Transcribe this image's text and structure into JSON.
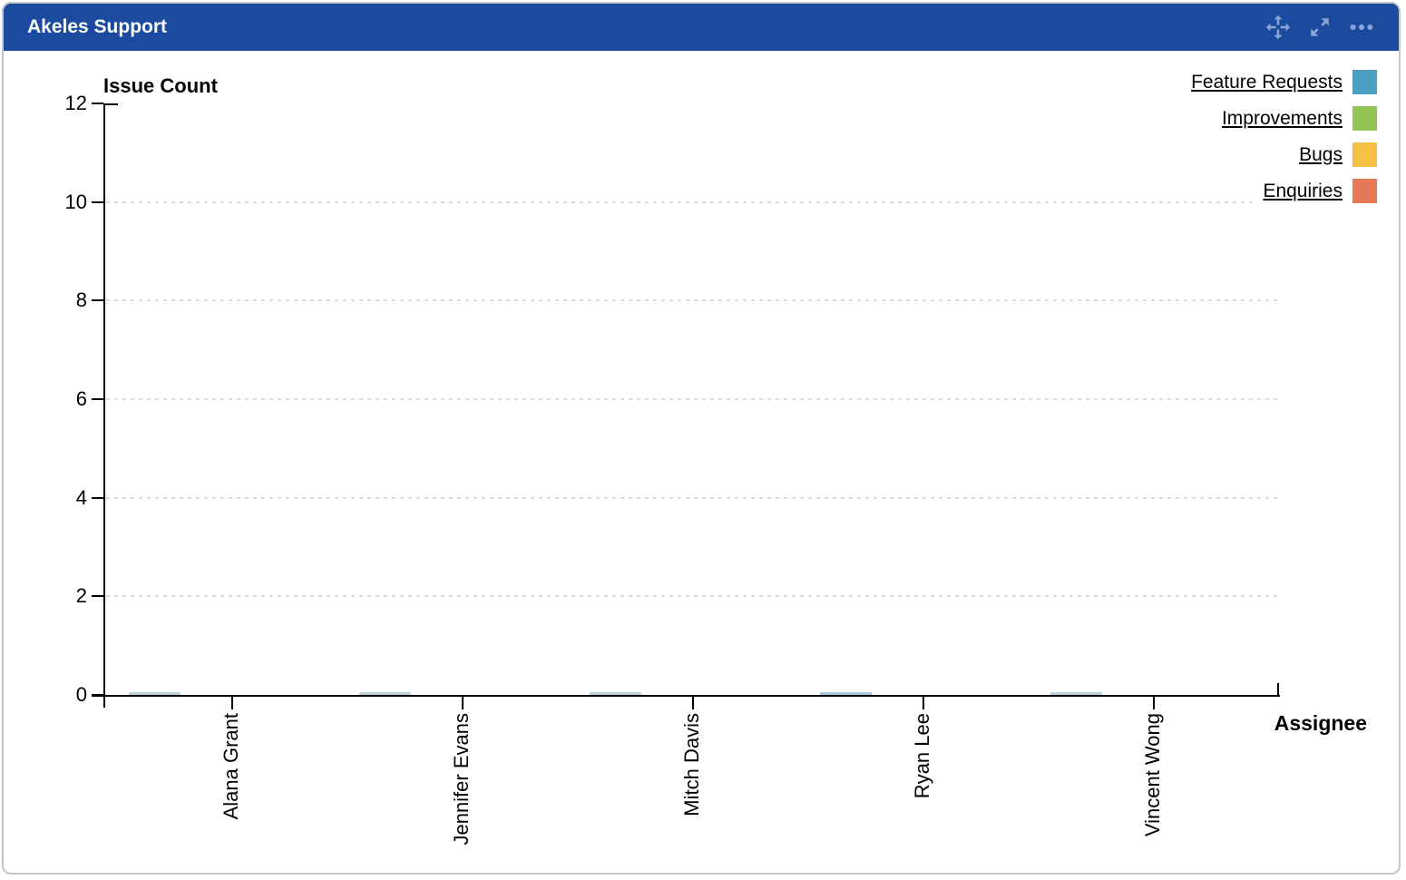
{
  "header": {
    "title": "Akeles Support",
    "icons": [
      {
        "name": "move-icon"
      },
      {
        "name": "expand-icon"
      },
      {
        "name": "more-options-icon"
      }
    ]
  },
  "chart_data": {
    "type": "bar",
    "title": "Akeles Support",
    "ylabel": "Issue Count",
    "xlabel": "Assignee",
    "categories": [
      "Alana Grant",
      "Jennifer Evans",
      "Mitch Davis",
      "Ryan Lee",
      "Vincent Wong"
    ],
    "series": [
      {
        "name": "Feature Requests",
        "color": "#4b9fc2",
        "values": [
          0,
          0,
          0,
          0,
          0
        ]
      },
      {
        "name": "Improvements",
        "color": "#92c353",
        "values": [
          0,
          0,
          0,
          0,
          0
        ]
      },
      {
        "name": "Bugs",
        "color": "#f4c145",
        "values": [
          0,
          0,
          0,
          0,
          0
        ]
      },
      {
        "name": "Enquiries",
        "color": "#e57a58",
        "values": [
          0,
          0,
          0,
          0,
          0
        ]
      }
    ],
    "ylim": [
      0,
      12
    ],
    "yticks": [
      0,
      2,
      4,
      6,
      8,
      10,
      12
    ],
    "gridlines_at": [
      2,
      4,
      6,
      8,
      10
    ],
    "grid_style": "dashed",
    "legend_position": "top-right",
    "legend_underlined": true,
    "note": "All series values are zero; bars render only as thin slivers on the baseline."
  },
  "colors": {
    "header_bg": "#1b4b9e",
    "header_text": "#ffffff",
    "header_icon": "#8ba5d6",
    "card_border": "#c6c6c6",
    "axis": "#000000",
    "gridline": "#d9d9d9",
    "zero_bar_sliver": "#bdd0dc",
    "zero_bar_sliver_emphasis": "#a8c6da"
  }
}
